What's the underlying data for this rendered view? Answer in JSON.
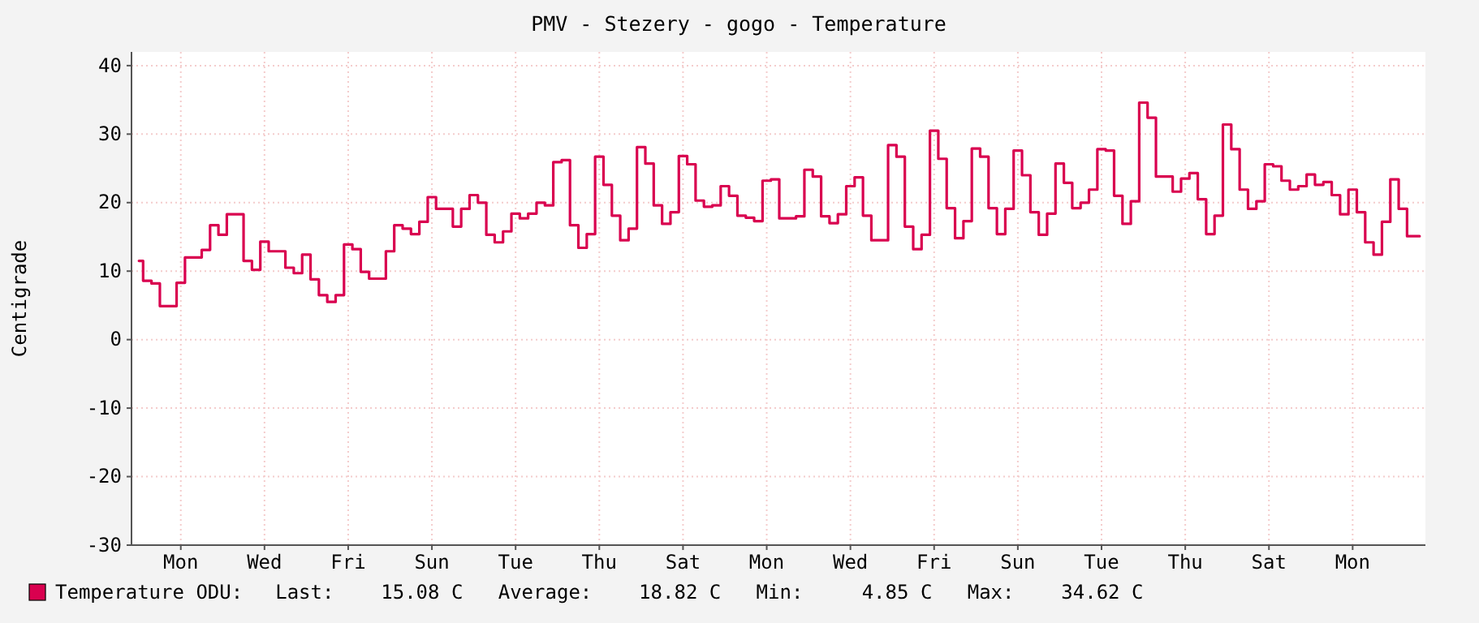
{
  "chart_data": {
    "type": "step",
    "title": "PMV - Stezery - gogo - Temperature",
    "ylabel": "Centigrade",
    "categories": [
      null,
      null,
      null,
      null,
      null,
      "Mon",
      null,
      null,
      null,
      null,
      null,
      null,
      null,
      null,
      null,
      "Wed",
      null,
      null,
      null,
      null,
      null,
      null,
      null,
      null,
      null,
      "Fri",
      null,
      null,
      null,
      null,
      null,
      null,
      null,
      null,
      null,
      "Sun",
      null,
      null,
      null,
      null,
      null,
      null,
      null,
      null,
      null,
      "Tue",
      null,
      null,
      null,
      null,
      null,
      null,
      null,
      null,
      null,
      "Thu",
      null,
      null,
      null,
      null,
      null,
      null,
      null,
      null,
      null,
      "Sat",
      null,
      null,
      null,
      null,
      null,
      null,
      null,
      null,
      null,
      "Mon",
      null,
      null,
      null,
      null,
      null,
      null,
      null,
      null,
      null,
      "Wed",
      null,
      null,
      null,
      null,
      null,
      null,
      null,
      null,
      null,
      "Fri",
      null,
      null,
      null,
      null,
      null,
      null,
      null,
      null,
      null,
      "Sun",
      null,
      null,
      null,
      null,
      null,
      null,
      null,
      null,
      null,
      "Tue",
      null,
      null,
      null,
      null,
      null,
      null,
      null,
      null,
      null,
      "Thu",
      null,
      null,
      null,
      null,
      null,
      null,
      null,
      null,
      null,
      "Sat",
      null,
      null,
      null,
      null,
      null,
      null,
      null,
      null,
      null,
      "Mon",
      null,
      null,
      null,
      null,
      null,
      null,
      null,
      null
    ],
    "ylim": [
      -30,
      42
    ],
    "yticks": [
      -30,
      -20,
      -10,
      0,
      10,
      20,
      30,
      40
    ],
    "grid": true,
    "legend": "bottom left",
    "annotations": [
      "Last:    15.08 C   Average:    18.82 C   Min:     4.85 C   Max:    34.62 C"
    ],
    "series": [
      {
        "name": "Temperature ODU:",
        "color": "#d9004f",
        "values": [
          11.5,
          8.6,
          8.2,
          4.9,
          4.9,
          8.3,
          12.0,
          12.0,
          13.1,
          16.7,
          15.3,
          18.3,
          18.3,
          11.5,
          10.2,
          14.3,
          12.9,
          12.9,
          10.5,
          9.7,
          12.4,
          8.8,
          6.5,
          5.5,
          6.5,
          13.9,
          13.2,
          9.9,
          8.9,
          8.9,
          12.9,
          16.7,
          16.2,
          15.4,
          17.2,
          20.8,
          19.1,
          19.1,
          16.5,
          19.1,
          21.1,
          20.0,
          15.3,
          14.2,
          15.8,
          18.4,
          17.7,
          18.4,
          20.0,
          19.6,
          25.9,
          26.2,
          16.7,
          13.4,
          15.4,
          26.7,
          22.6,
          18.1,
          14.5,
          16.2,
          28.1,
          25.7,
          19.6,
          16.9,
          18.6,
          26.8,
          25.6,
          20.3,
          19.4,
          19.6,
          22.4,
          21.0,
          18.1,
          17.8,
          17.3,
          23.2,
          23.4,
          17.7,
          17.7,
          18.0,
          24.8,
          23.8,
          18.0,
          17.0,
          18.3,
          22.4,
          23.7,
          18.1,
          14.5,
          14.5,
          28.4,
          26.7,
          16.5,
          13.2,
          15.3,
          30.5,
          26.4,
          19.2,
          14.8,
          17.3,
          27.9,
          26.7,
          19.2,
          15.4,
          19.1,
          27.6,
          24.0,
          18.6,
          15.3,
          18.4,
          25.7,
          22.9,
          19.2,
          20.0,
          21.9,
          27.8,
          27.6,
          21.0,
          16.9,
          20.2,
          34.6,
          32.4,
          23.8,
          23.8,
          21.6,
          23.5,
          24.3,
          20.5,
          15.4,
          18.1,
          31.4,
          27.8,
          21.9,
          19.1,
          20.2,
          25.6,
          25.3,
          23.2,
          21.9,
          22.4,
          24.1,
          22.6,
          23.0,
          21.1,
          18.3,
          21.9,
          18.6,
          14.2,
          12.4,
          17.2,
          23.4,
          19.1,
          15.1,
          15.1
        ]
      }
    ]
  }
}
